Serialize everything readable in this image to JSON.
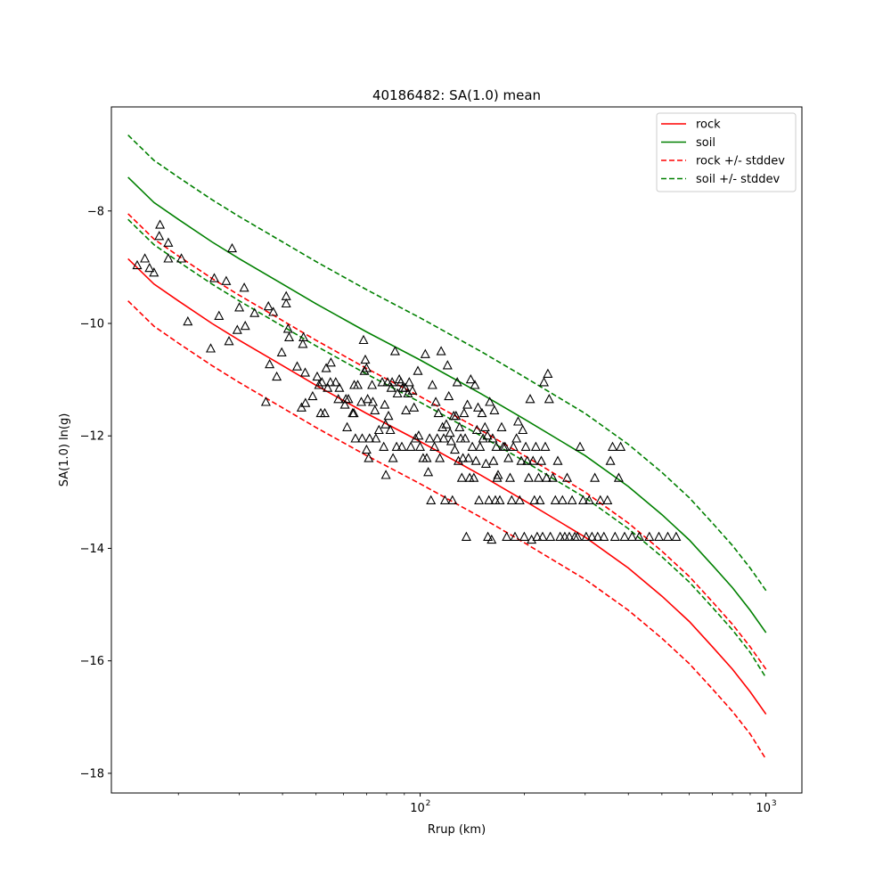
{
  "chart_data": {
    "type": "scatter",
    "title": "40186482: SA(1.0) mean",
    "xlabel": "Rrup (km)",
    "ylabel": "SA(1.0) ln(g)",
    "xscale": "log",
    "xlim": [
      12.8,
      1270
    ],
    "ylim": [
      -18.35,
      -6.15
    ],
    "xticks": [
      {
        "value": 100,
        "label": "10",
        "exp": "2"
      },
      {
        "value": 1000,
        "label": "10",
        "exp": "3"
      }
    ],
    "xminor_ticks": [
      20,
      30,
      40,
      50,
      60,
      70,
      80,
      90,
      200,
      300,
      400,
      500,
      600,
      700,
      800,
      900
    ],
    "yticks": [
      -18,
      -16,
      -14,
      -12,
      -10,
      -8
    ],
    "legend_position": "top-right",
    "legend": [
      {
        "label": "rock",
        "color": "#ff0000",
        "dash": false
      },
      {
        "label": "soil",
        "color": "#008000",
        "dash": false
      },
      {
        "label": "rock +/- stddev",
        "color": "#ff0000",
        "dash": true
      },
      {
        "label": "soil +/- stddev",
        "color": "#008000",
        "dash": true
      }
    ],
    "curve_x": [
      14.3,
      17,
      20,
      25,
      30,
      40,
      50,
      70,
      100,
      150,
      200,
      300,
      400,
      500,
      600,
      700,
      800,
      900,
      1000
    ],
    "series": [
      {
        "name": "rock",
        "color": "#ff0000",
        "dash": false,
        "y": [
          -8.85,
          -9.3,
          -9.6,
          -10.0,
          -10.3,
          -10.75,
          -11.1,
          -11.6,
          -12.1,
          -12.7,
          -13.15,
          -13.8,
          -14.35,
          -14.85,
          -15.3,
          -15.75,
          -16.15,
          -16.55,
          -16.95
        ]
      },
      {
        "name": "soil",
        "color": "#008000",
        "dash": false,
        "y": [
          -7.4,
          -7.85,
          -8.15,
          -8.55,
          -8.85,
          -9.3,
          -9.65,
          -10.15,
          -10.65,
          -11.25,
          -11.7,
          -12.35,
          -12.9,
          -13.4,
          -13.85,
          -14.3,
          -14.7,
          -15.1,
          -15.5
        ]
      },
      {
        "name": "rock +/- stddev",
        "color": "#ff0000",
        "dash": true,
        "y": [
          -8.05,
          -8.5,
          -8.8,
          -9.2,
          -9.5,
          -9.95,
          -10.3,
          -10.8,
          -11.3,
          -11.9,
          -12.35,
          -13.0,
          -13.55,
          -14.05,
          -14.5,
          -14.95,
          -15.35,
          -15.75,
          -16.15
        ]
      },
      {
        "name": "rock +/- stddev",
        "color": "#ff0000",
        "dash": true,
        "y": [
          -9.6,
          -10.05,
          -10.35,
          -10.75,
          -11.05,
          -11.5,
          -11.85,
          -12.35,
          -12.85,
          -13.45,
          -13.9,
          -14.55,
          -15.1,
          -15.6,
          -16.05,
          -16.5,
          -16.9,
          -17.3,
          -17.75
        ]
      },
      {
        "name": "soil +/- stddev",
        "color": "#008000",
        "dash": true,
        "y": [
          -6.65,
          -7.1,
          -7.4,
          -7.8,
          -8.1,
          -8.55,
          -8.9,
          -9.4,
          -9.9,
          -10.5,
          -10.95,
          -11.6,
          -12.15,
          -12.65,
          -13.1,
          -13.55,
          -13.95,
          -14.35,
          -14.75
        ]
      },
      {
        "name": "soil +/- stddev",
        "color": "#008000",
        "dash": true,
        "y": [
          -8.15,
          -8.6,
          -8.9,
          -9.3,
          -9.6,
          -10.05,
          -10.4,
          -10.9,
          -11.4,
          -12.0,
          -12.45,
          -13.1,
          -13.65,
          -14.15,
          -14.6,
          -15.05,
          -15.45,
          -15.85,
          -16.3
        ]
      }
    ],
    "points": [
      [
        15.2,
        -8.97
      ],
      [
        16.0,
        -8.85
      ],
      [
        16.5,
        -9.02
      ],
      [
        17.0,
        -9.1
      ],
      [
        17.7,
        -8.25
      ],
      [
        17.6,
        -8.45
      ],
      [
        18.7,
        -8.57
      ],
      [
        18.7,
        -8.85
      ],
      [
        20.4,
        -8.85
      ],
      [
        21.3,
        -9.97
      ],
      [
        24.8,
        -10.45
      ],
      [
        25.4,
        -9.2
      ],
      [
        26.2,
        -9.87
      ],
      [
        27.5,
        -9.25
      ],
      [
        28.0,
        -10.32
      ],
      [
        28.6,
        -8.67
      ],
      [
        29.6,
        -10.12
      ],
      [
        30.0,
        -9.72
      ],
      [
        31.0,
        -9.37
      ],
      [
        31.2,
        -10.05
      ],
      [
        33.2,
        -9.82
      ],
      [
        35.8,
        -11.4
      ],
      [
        36.4,
        -9.7
      ],
      [
        36.7,
        -10.73
      ],
      [
        37.6,
        -9.8
      ],
      [
        38.5,
        -10.95
      ],
      [
        39.8,
        -10.52
      ],
      [
        41.0,
        -9.52
      ],
      [
        41.0,
        -9.65
      ],
      [
        41.5,
        -10.1
      ],
      [
        41.8,
        -10.25
      ],
      [
        44.1,
        -10.77
      ],
      [
        45.4,
        -11.5
      ],
      [
        45.8,
        -10.37
      ],
      [
        46.6,
        -11.42
      ],
      [
        46.0,
        -10.25
      ],
      [
        46.5,
        -10.88
      ],
      [
        48.9,
        -11.3
      ],
      [
        50.4,
        -10.95
      ],
      [
        51.0,
        -11.1
      ],
      [
        51.6,
        -11.6
      ],
      [
        52.0,
        -11.05
      ],
      [
        53.0,
        -11.6
      ],
      [
        53.5,
        -10.8
      ],
      [
        54.0,
        -11.15
      ],
      [
        55.0,
        -11.05
      ],
      [
        55.2,
        -10.7
      ],
      [
        57.0,
        -11.05
      ],
      [
        58.0,
        -11.35
      ],
      [
        58.4,
        -11.15
      ],
      [
        60.6,
        -11.45
      ],
      [
        61.0,
        -11.35
      ],
      [
        61.5,
        -11.85
      ],
      [
        62.0,
        -11.35
      ],
      [
        63.8,
        -11.6
      ],
      [
        64.3,
        -11.6
      ],
      [
        64.5,
        -11.1
      ],
      [
        65.0,
        -12.05
      ],
      [
        66.0,
        -11.1
      ],
      [
        67.6,
        -11.4
      ],
      [
        68.0,
        -12.05
      ],
      [
        68.6,
        -10.3
      ],
      [
        69.0,
        -10.85
      ],
      [
        69.4,
        -10.65
      ],
      [
        70.0,
        -10.8
      ],
      [
        70.0,
        -12.25
      ],
      [
        70.5,
        -11.35
      ],
      [
        71.0,
        -12.4
      ],
      [
        71.4,
        -12.05
      ],
      [
        72.6,
        -11.1
      ],
      [
        73.0,
        -11.4
      ],
      [
        74.0,
        -11.55
      ],
      [
        74.5,
        -12.05
      ],
      [
        76.0,
        -11.9
      ],
      [
        77.7,
        -11.05
      ],
      [
        78.5,
        -12.2
      ],
      [
        79.0,
        -11.45
      ],
      [
        79.4,
        -11.8
      ],
      [
        79.6,
        -12.7
      ],
      [
        80.5,
        -11.05
      ],
      [
        81.0,
        -11.65
      ],
      [
        82.0,
        -11.9
      ],
      [
        82.5,
        -11.15
      ],
      [
        83.0,
        -11.05
      ],
      [
        83.5,
        -12.4
      ],
      [
        84.6,
        -10.5
      ],
      [
        85.5,
        -12.2
      ],
      [
        86.0,
        -11.25
      ],
      [
        87.0,
        -11.0
      ],
      [
        88.0,
        -11.05
      ],
      [
        88.5,
        -12.2
      ],
      [
        89.0,
        -11.15
      ],
      [
        90.6,
        -11.15
      ],
      [
        91.0,
        -11.55
      ],
      [
        92.2,
        -11.25
      ],
      [
        93.0,
        -11.05
      ],
      [
        94.0,
        -12.2
      ],
      [
        95.0,
        -11.2
      ],
      [
        96.0,
        -11.5
      ],
      [
        97.0,
        -12.05
      ],
      [
        98.5,
        -10.85
      ],
      [
        99.0,
        -12.0
      ],
      [
        100.0,
        -12.2
      ],
      [
        102.0,
        -12.4
      ],
      [
        103.5,
        -10.55
      ],
      [
        104.5,
        -12.4
      ],
      [
        105.5,
        -12.65
      ],
      [
        106.5,
        -12.05
      ],
      [
        107.5,
        -13.15
      ],
      [
        108.5,
        -11.1
      ],
      [
        110.0,
        -12.2
      ],
      [
        111.0,
        -11.4
      ],
      [
        112.0,
        -12.05
      ],
      [
        113.0,
        -11.6
      ],
      [
        114.0,
        -12.4
      ],
      [
        115.0,
        -10.5
      ],
      [
        116.0,
        -11.85
      ],
      [
        117.0,
        -12.05
      ],
      [
        118.0,
        -13.15
      ],
      [
        119.0,
        -11.8
      ],
      [
        120.0,
        -10.75
      ],
      [
        121.0,
        -11.3
      ],
      [
        122.0,
        -11.95
      ],
      [
        123.0,
        -12.1
      ],
      [
        124.0,
        -13.15
      ],
      [
        125.0,
        -11.65
      ],
      [
        126.0,
        -12.25
      ],
      [
        127.0,
        -11.65
      ],
      [
        128.0,
        -11.05
      ],
      [
        129.0,
        -12.45
      ],
      [
        130.0,
        -11.85
      ],
      [
        131.0,
        -12.05
      ],
      [
        132.0,
        -12.75
      ],
      [
        133.0,
        -12.4
      ],
      [
        134.0,
        -11.6
      ],
      [
        135.0,
        -12.05
      ],
      [
        136.0,
        -13.8
      ],
      [
        137.0,
        -11.45
      ],
      [
        138.0,
        -12.4
      ],
      [
        139.0,
        -12.75
      ],
      [
        140.0,
        -11.0
      ],
      [
        141.5,
        -12.2
      ],
      [
        143.0,
        -12.75
      ],
      [
        144.0,
        -11.1
      ],
      [
        145.0,
        -12.45
      ],
      [
        146.0,
        -11.9
      ],
      [
        147.0,
        -11.5
      ],
      [
        148.0,
        -13.15
      ],
      [
        149.0,
        -12.2
      ],
      [
        151.0,
        -11.6
      ],
      [
        152.0,
        -12.05
      ],
      [
        154.0,
        -11.85
      ],
      [
        155.0,
        -12.5
      ],
      [
        156.5,
        -12.0
      ],
      [
        157.0,
        -13.8
      ],
      [
        158.0,
        -13.15
      ],
      [
        159.0,
        -11.4
      ],
      [
        161.0,
        -13.85
      ],
      [
        162.0,
        -12.05
      ],
      [
        163.0,
        -12.45
      ],
      [
        164.0,
        -11.55
      ],
      [
        165.0,
        -13.15
      ],
      [
        166.0,
        -12.2
      ],
      [
        167.0,
        -12.75
      ],
      [
        168.0,
        -12.7
      ],
      [
        170.0,
        -13.15
      ],
      [
        172.0,
        -11.85
      ],
      [
        174.0,
        -12.2
      ],
      [
        176.0,
        -12.2
      ],
      [
        178.0,
        -13.8
      ],
      [
        180.0,
        -12.4
      ],
      [
        182.0,
        -12.75
      ],
      [
        184.0,
        -13.15
      ],
      [
        186.0,
        -12.2
      ],
      [
        188.0,
        -13.8
      ],
      [
        190.0,
        -12.05
      ],
      [
        192.0,
        -11.75
      ],
      [
        194.0,
        -13.15
      ],
      [
        196.0,
        -12.45
      ],
      [
        198.0,
        -11.9
      ],
      [
        200.0,
        -13.8
      ],
      [
        202.0,
        -12.2
      ],
      [
        204.0,
        -12.45
      ],
      [
        206.0,
        -12.75
      ],
      [
        208.0,
        -11.35
      ],
      [
        210.0,
        -13.85
      ],
      [
        212.0,
        -12.45
      ],
      [
        214.0,
        -13.15
      ],
      [
        216.0,
        -12.2
      ],
      [
        218.0,
        -13.8
      ],
      [
        220.0,
        -12.75
      ],
      [
        222.0,
        -13.15
      ],
      [
        224.0,
        -12.45
      ],
      [
        226.0,
        -13.8
      ],
      [
        228.0,
        -11.05
      ],
      [
        230.0,
        -12.2
      ],
      [
        232.0,
        -12.75
      ],
      [
        234.0,
        -10.9
      ],
      [
        236.0,
        -11.35
      ],
      [
        238.0,
        -13.8
      ],
      [
        242.0,
        -12.75
      ],
      [
        246.0,
        -13.15
      ],
      [
        250.0,
        -12.45
      ],
      [
        254.0,
        -13.8
      ],
      [
        258.0,
        -13.15
      ],
      [
        262.0,
        -13.8
      ],
      [
        266.0,
        -12.75
      ],
      [
        270.0,
        -13.8
      ],
      [
        275.0,
        -13.15
      ],
      [
        280.0,
        -13.8
      ],
      [
        285.0,
        -13.8
      ],
      [
        290.0,
        -12.2
      ],
      [
        296.0,
        -13.15
      ],
      [
        302.0,
        -13.8
      ],
      [
        308.0,
        -13.15
      ],
      [
        314.0,
        -13.8
      ],
      [
        320.0,
        -12.75
      ],
      [
        326.0,
        -13.8
      ],
      [
        332.0,
        -13.15
      ],
      [
        340.0,
        -13.8
      ],
      [
        348.0,
        -13.15
      ],
      [
        355.0,
        -12.45
      ],
      [
        360.0,
        -12.2
      ],
      [
        366.0,
        -13.8
      ],
      [
        375.0,
        -12.75
      ],
      [
        380.0,
        -12.2
      ],
      [
        390.0,
        -13.8
      ],
      [
        410.0,
        -13.8
      ],
      [
        430.0,
        -13.8
      ],
      [
        460.0,
        -13.8
      ],
      [
        490.0,
        -13.8
      ],
      [
        520.0,
        -13.8
      ],
      [
        550.0,
        -13.8
      ]
    ]
  }
}
